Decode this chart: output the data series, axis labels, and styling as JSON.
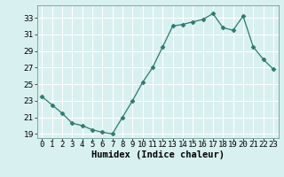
{
  "x": [
    0,
    1,
    2,
    3,
    4,
    5,
    6,
    7,
    8,
    9,
    10,
    11,
    12,
    13,
    14,
    15,
    16,
    17,
    18,
    19,
    20,
    21,
    22,
    23
  ],
  "y": [
    23.5,
    22.5,
    21.5,
    20.3,
    20.0,
    19.5,
    19.2,
    19.0,
    21.0,
    23.0,
    25.2,
    27.0,
    29.5,
    32.0,
    32.2,
    32.5,
    32.8,
    33.5,
    31.8,
    31.5,
    33.2,
    29.5,
    28.0,
    26.8
  ],
  "xlabel": "Humidex (Indice chaleur)",
  "xlim": [
    -0.5,
    23.5
  ],
  "ylim": [
    18.5,
    34.5
  ],
  "yticks": [
    19,
    21,
    23,
    25,
    27,
    29,
    31,
    33
  ],
  "xtick_labels": [
    "0",
    "1",
    "2",
    "3",
    "4",
    "5",
    "6",
    "7",
    "8",
    "9",
    "10",
    "11",
    "12",
    "13",
    "14",
    "15",
    "16",
    "17",
    "18",
    "19",
    "20",
    "21",
    "22",
    "23"
  ],
  "line_color": "#2d7a6e",
  "marker": "D",
  "marker_size": 2.5,
  "bg_color": "#d8f0f0",
  "grid_color": "#ffffff",
  "label_fontsize": 7.5,
  "tick_fontsize": 6.5,
  "spine_color": "#6e9e96"
}
